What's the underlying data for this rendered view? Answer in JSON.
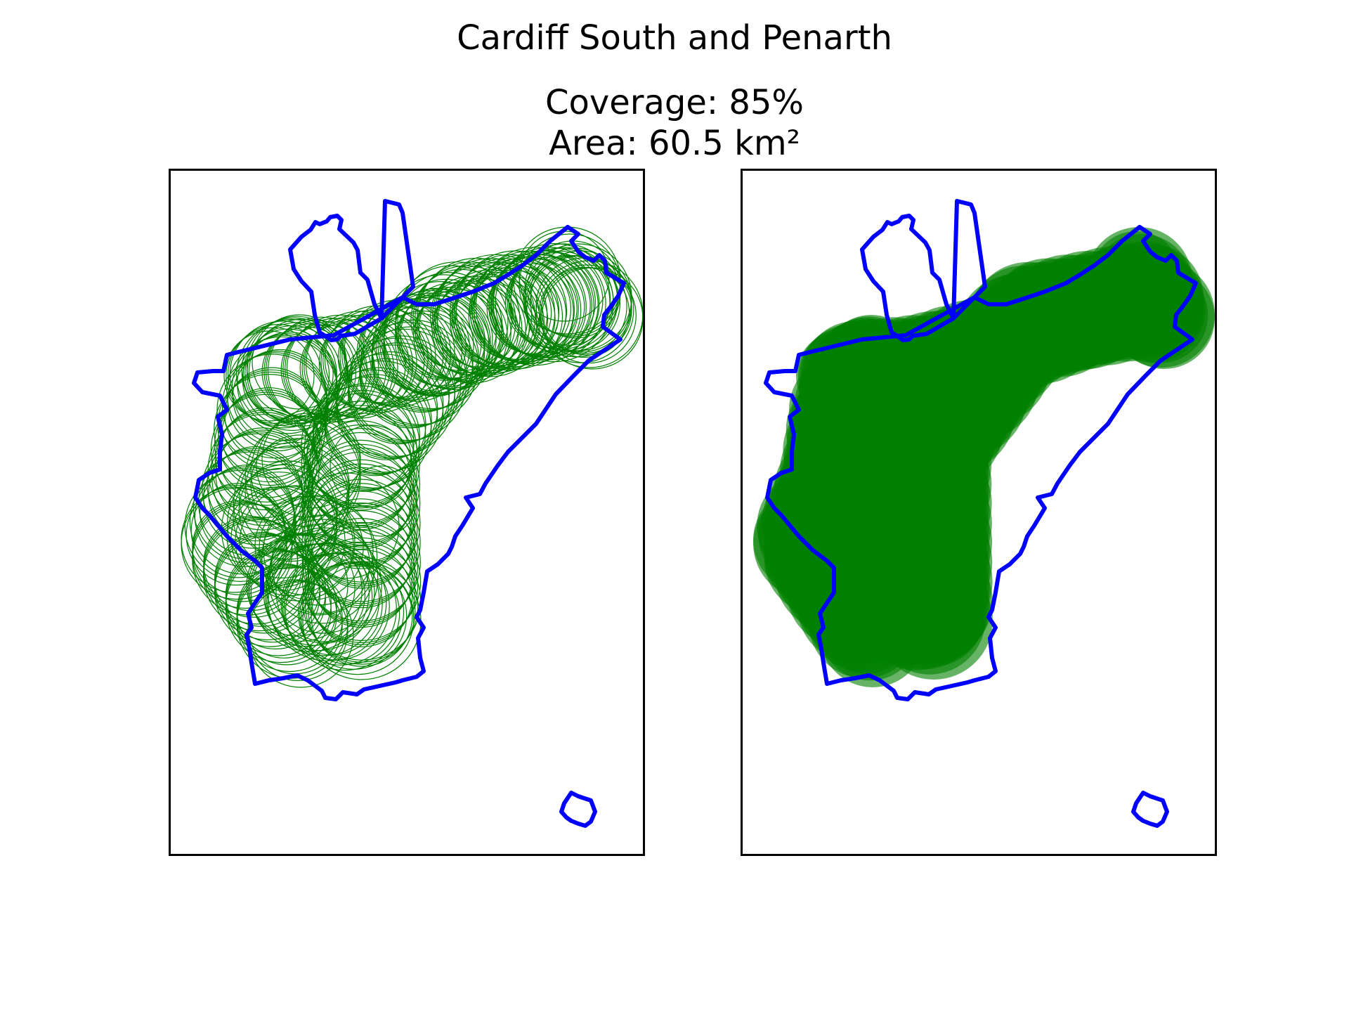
{
  "figure": {
    "title": "Cardiff South and Penarth",
    "coverage_text": "Coverage: 85%",
    "area_text": "Area: 60.5 km²"
  },
  "colors": {
    "boundary": "#0000ff",
    "coverage": "#008000",
    "frame": "#000000"
  },
  "panels": [
    {
      "id": "left",
      "style": "outline-circles"
    },
    {
      "id": "right",
      "style": "filled-circles"
    }
  ]
}
